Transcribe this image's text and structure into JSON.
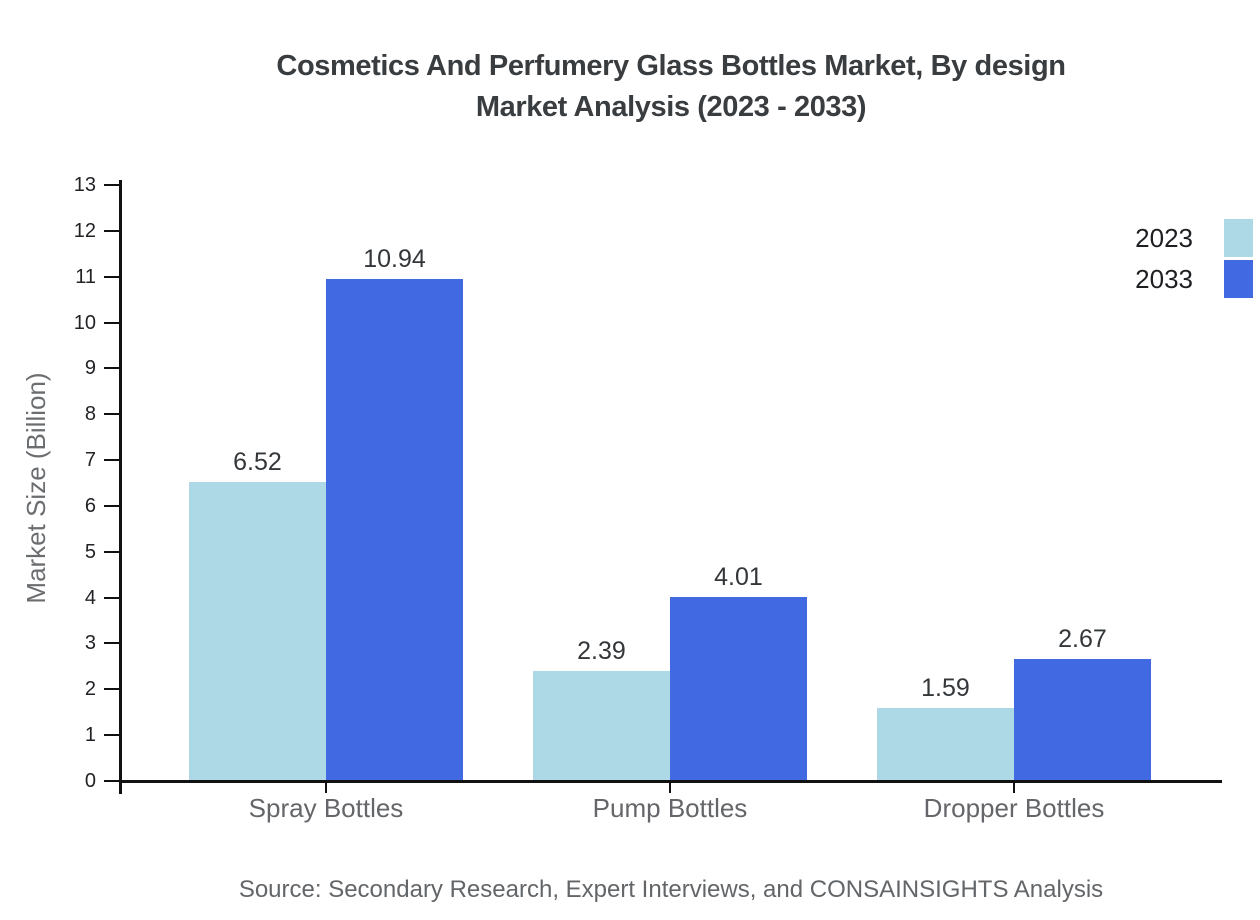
{
  "colors": {
    "background": "#ffffff",
    "title": "#3a3d40",
    "axis": "#111111",
    "tick_label": "#212326",
    "category_label": "#646669",
    "value_label": "#34373a",
    "axis_title": "#6b6e71",
    "source": "#636669",
    "legend_label": "#1d1f22"
  },
  "chart_data": {
    "type": "bar",
    "title": "Cosmetics And Perfumery Glass Bottles Market, By design Market Analysis (2023 - 2033)",
    "title_lines": [
      "Cosmetics And Perfumery Glass Bottles Market, By design",
      "Market Analysis (2023 - 2033)"
    ],
    "xlabel": "",
    "ylabel": "Market Size (Billion)",
    "categories": [
      "Spray Bottles",
      "Pump Bottles",
      "Dropper Bottles"
    ],
    "series": [
      {
        "name": "2023",
        "color": "#add8e6",
        "values": [
          6.52,
          2.39,
          1.59
        ]
      },
      {
        "name": "2033",
        "color": "#4169e1",
        "values": [
          10.94,
          4.01,
          2.67
        ]
      }
    ],
    "value_labels": [
      [
        "6.52",
        "2.39",
        "1.59"
      ],
      [
        "10.94",
        "4.01",
        "2.67"
      ]
    ],
    "ylim": [
      0,
      13
    ],
    "ytick_step": 1,
    "ytick_labels": [
      "0",
      "1",
      "2",
      "3",
      "4",
      "5",
      "6",
      "7",
      "8",
      "9",
      "10",
      "11",
      "12",
      "13"
    ],
    "grid": false,
    "legend_position": "top-right",
    "legend_entries": [
      "2023",
      "2033"
    ],
    "source_note": "Source: Secondary Research, Expert Interviews, and CONSAINSIGHTS Analysis"
  }
}
